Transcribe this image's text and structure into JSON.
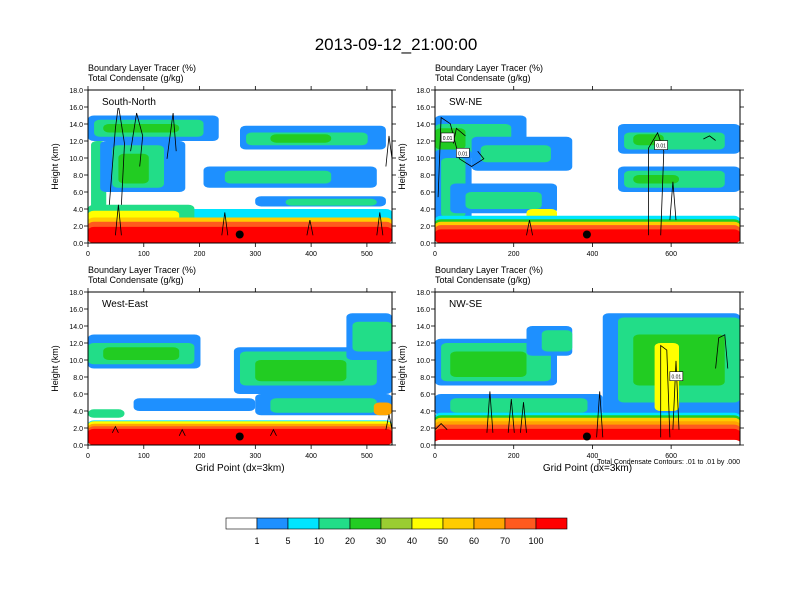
{
  "title": "2013-09-12_21:00:00",
  "colors": {
    "levels": [
      "#ffffff",
      "#1e90ff",
      "#00e5ff",
      "#22dd88",
      "#22cc22",
      "#9acd32",
      "#ffff00",
      "#ffcc00",
      "#ffa500",
      "#ff5a1e",
      "#ff0000"
    ]
  },
  "colorbar": {
    "labels": [
      "1",
      "5",
      "10",
      "20",
      "30",
      "40",
      "50",
      "60",
      "70",
      "100"
    ]
  },
  "chart_data": [
    {
      "type": "heatmap",
      "name": "South-North",
      "subtitle1": "Boundary Layer Tracer   (%)",
      "subtitle2": "Total Condensate   (g/kg)",
      "xlabel": "",
      "ylabel": "Height (km)",
      "xlim": [
        0,
        545
      ],
      "ylim": [
        0,
        18
      ],
      "xticks": [
        "0",
        "100",
        "200",
        "300",
        "400",
        "500"
      ],
      "yticks": [
        "0.0",
        "2.0",
        "4.0",
        "6.0",
        "8.0",
        "10.0",
        "12.0",
        "14.0",
        "16.0",
        "18.0"
      ],
      "marker": {
        "x": 272,
        "y": 1.0
      }
    },
    {
      "type": "heatmap",
      "name": "SW-NE",
      "subtitle1": "Boundary Layer Tracer   (%)",
      "subtitle2": "Total Condensate   (g/kg)",
      "xlabel": "",
      "ylabel": "Height (km)",
      "xlim": [
        0,
        775
      ],
      "ylim": [
        0,
        18
      ],
      "xticks": [
        "0",
        "200",
        "400",
        "600"
      ],
      "yticks": [
        "0.0",
        "2.0",
        "4.0",
        "6.0",
        "8.0",
        "10.0",
        "12.0",
        "14.0",
        "16.0",
        "18.0"
      ],
      "marker": {
        "x": 386,
        "y": 1.0
      },
      "contour_labels": [
        "0.01",
        "0.01",
        "0.01"
      ]
    },
    {
      "type": "heatmap",
      "name": "West-East",
      "subtitle1": "Boundary Layer Tracer   (%)",
      "subtitle2": "Total Condensate   (g/kg)",
      "xlabel": "Grid Point (dx=3km)",
      "ylabel": "Height (km)",
      "xlim": [
        0,
        545
      ],
      "ylim": [
        0,
        18
      ],
      "xticks": [
        "0",
        "100",
        "200",
        "300",
        "400",
        "500"
      ],
      "yticks": [
        "0.0",
        "2.0",
        "4.0",
        "6.0",
        "8.0",
        "10.0",
        "12.0",
        "14.0",
        "16.0",
        "18.0"
      ],
      "marker": {
        "x": 272,
        "y": 1.0
      }
    },
    {
      "type": "heatmap",
      "name": "NW-SE",
      "subtitle1": "Boundary Layer Tracer   (%)",
      "subtitle2": "Total Condensate   (g/kg)",
      "xlabel": "Grid Point (dx=3km)",
      "ylabel": "Height (km)",
      "xlim": [
        0,
        775
      ],
      "ylim": [
        0,
        18
      ],
      "xticks": [
        "0",
        "200",
        "400",
        "600"
      ],
      "yticks": [
        "0.0",
        "2.0",
        "4.0",
        "6.0",
        "8.0",
        "10.0",
        "12.0",
        "14.0",
        "16.0",
        "18.0"
      ],
      "marker": {
        "x": 386,
        "y": 1.0
      },
      "contour_labels": [
        "0.01"
      ],
      "footnote": "Total Condensate Contours: .01 to .01 by .000"
    }
  ]
}
